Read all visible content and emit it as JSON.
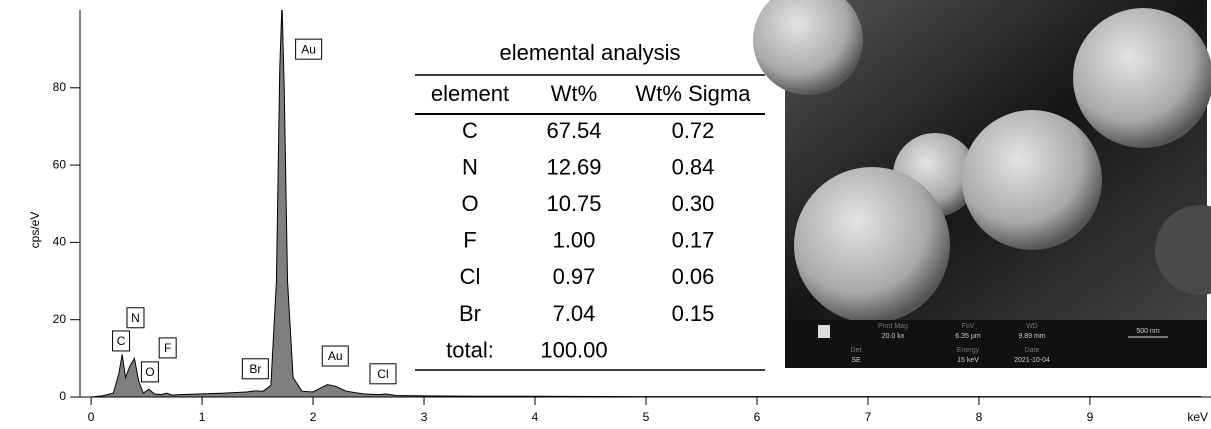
{
  "chart_data": {
    "type": "area",
    "y_label": "cps/eV",
    "x_label": "keV",
    "xlim": [
      -0.1,
      10.1
    ],
    "ylim": [
      0,
      100
    ],
    "xticks": [
      0,
      1,
      2,
      3,
      4,
      5,
      6,
      7,
      8,
      9
    ],
    "yticks": [
      0,
      20,
      40,
      60,
      80
    ],
    "series": [
      {
        "color": "#7f7f7f",
        "x": [
          0,
          0.1,
          0.2,
          0.25,
          0.28,
          0.31,
          0.35,
          0.39,
          0.43,
          0.47,
          0.52,
          0.57,
          0.63,
          0.68,
          0.73,
          0.8,
          1.0,
          1.2,
          1.4,
          1.48,
          1.55,
          1.62,
          1.67,
          1.7,
          1.72,
          1.74,
          1.77,
          1.82,
          1.9,
          2.0,
          2.08,
          2.13,
          2.2,
          2.3,
          2.45,
          2.6,
          2.65,
          2.75,
          3.0,
          3.5,
          4,
          5,
          6,
          7,
          8,
          9,
          10
        ],
        "values": [
          0,
          0.3,
          1,
          6,
          11,
          5,
          8,
          10,
          4,
          1,
          2,
          0.8,
          0.6,
          1,
          0.5,
          0.6,
          0.8,
          1,
          1.3,
          1.6,
          1.5,
          3,
          30,
          85,
          102,
          80,
          30,
          5,
          1.5,
          1.3,
          2.5,
          3.2,
          2.8,
          1.5,
          0.8,
          0.6,
          0.8,
          0.4,
          0.3,
          0.2,
          0.2,
          0.1,
          0.1,
          0.1,
          0.1,
          0.1,
          0.1
        ]
      }
    ],
    "annotations": [
      {
        "text": "C",
        "x": 0.27,
        "y": 14.5
      },
      {
        "text": "N",
        "x": 0.4,
        "y": 20.5
      },
      {
        "text": "O",
        "x": 0.53,
        "y": 6.5
      },
      {
        "text": "F",
        "x": 0.69,
        "y": 12.7
      },
      {
        "text": "Br",
        "x": 1.48,
        "y": 7.3
      },
      {
        "text": "Au",
        "x": 1.96,
        "y": 90
      },
      {
        "text": "Au",
        "x": 2.2,
        "y": 10.6
      },
      {
        "text": "Cl",
        "x": 2.63,
        "y": 6
      }
    ]
  },
  "table": {
    "title": "elemental analysis",
    "columns": [
      "element",
      "Wt%",
      "Wt% Sigma"
    ],
    "rows": [
      [
        "C",
        "67.54",
        "0.72"
      ],
      [
        "N",
        "12.69",
        "0.84"
      ],
      [
        "O",
        "10.75",
        "0.30"
      ],
      [
        "F",
        "1.00",
        "0.17"
      ],
      [
        "Cl",
        "0.97",
        "0.06"
      ],
      [
        "Br",
        "7.04",
        "0.15"
      ],
      [
        "total:",
        "100.00",
        ""
      ]
    ]
  },
  "sem_info": {
    "print_mag_label": "Print Mag",
    "print_mag": "20.0 kx",
    "fov_label": "FoV",
    "fov": "6.35 µm",
    "wd_label": "WD",
    "wd": "9.89 mm",
    "scale_bar": "500 nm",
    "det_label": "Det",
    "det": "SE",
    "energy_label": "Energy",
    "energy": "15 keV",
    "date_label": "Date",
    "date": "2021-10-04"
  }
}
